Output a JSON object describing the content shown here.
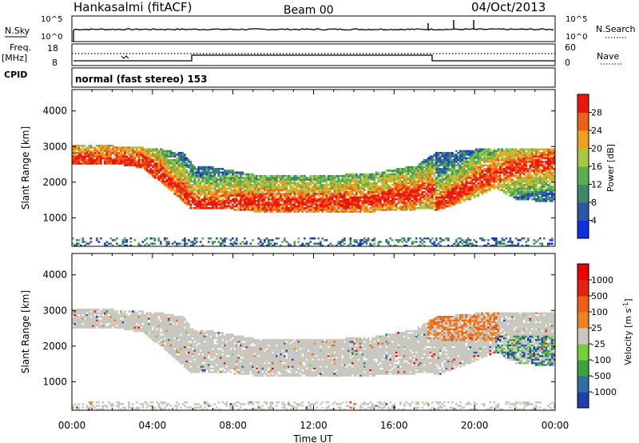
{
  "header": {
    "station": "Hankasalmi (fitACF)",
    "beam": "Beam 00",
    "date": "04/Oct/2013"
  },
  "status_panels": {
    "left_nsky": "N.Sky",
    "left_freq_top": "Freq.",
    "left_freq_unit": "[MHz]",
    "left_cpid": "CPID",
    "right_nsearch": "N.Search",
    "right_nave": "Nave",
    "nsky_ticks": [
      "10^5",
      "10^0"
    ],
    "nsearch_ticks": [
      "10^5",
      "10^0"
    ],
    "freq_ticks": [
      "18",
      "8"
    ],
    "nave_ticks": [
      "60",
      "0"
    ],
    "cpid_text": "normal (fast stereo) 153"
  },
  "chart_data": [
    {
      "type": "heatmap",
      "panel": "power",
      "ylabel": "Slant Range [km]",
      "xlabel": "",
      "xlim": [
        0,
        24
      ],
      "ylim": [
        200,
        4600
      ],
      "yticks": [
        "1000",
        "2000",
        "3000",
        "4000"
      ],
      "ytick_values": [
        1000,
        2000,
        3000,
        4000
      ],
      "colorbar_label": "Power [dB]",
      "colorbar_ticks": [
        "4",
        "8",
        "12",
        "16",
        "20",
        "24",
        "28"
      ],
      "colorbar_values": [
        4,
        8,
        12,
        16,
        20,
        24,
        28
      ],
      "colorbar_colors": [
        "#1030e0",
        "#2e56a8",
        "#3a8a6a",
        "#58b050",
        "#a8c840",
        "#f0a020",
        "#f06018",
        "#e81810"
      ]
    },
    {
      "type": "heatmap",
      "panel": "velocity",
      "ylabel": "Slant Range [km]",
      "xlabel": "Time UT",
      "xlim": [
        0,
        24
      ],
      "ylim": [
        200,
        4600
      ],
      "xticks": [
        "00:00",
        "04:00",
        "08:00",
        "12:00",
        "16:00",
        "20:00",
        "00:00"
      ],
      "xtick_values": [
        0,
        4,
        8,
        12,
        16,
        20,
        24
      ],
      "yticks": [
        "1000",
        "2000",
        "3000",
        "4000"
      ],
      "ytick_values": [
        1000,
        2000,
        3000,
        4000
      ],
      "colorbar_label": "Velocity [m s",
      "colorbar_label_sup": "-1",
      "colorbar_label_end": "]",
      "colorbar_ticks": [
        "1000",
        "500",
        "100",
        "25",
        "-25",
        "-100",
        "-500",
        "-1000"
      ],
      "colorbar_colors": [
        "#2040b0",
        "#3070a0",
        "#40a040",
        "#70d040",
        "#c8c8c0",
        "#f08020",
        "#f06010",
        "#e82010",
        "#f00000"
      ]
    }
  ]
}
